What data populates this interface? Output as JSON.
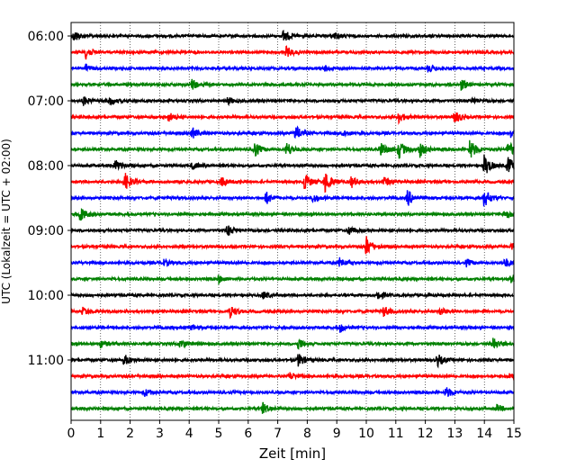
{
  "chart_data": {
    "type": "line",
    "title": "",
    "xlabel": "Zeit  [min]",
    "ylabel": "UTC (Lokalzeit = UTC + 02:00)",
    "xlim": [
      0,
      15
    ],
    "x_ticks": [
      0,
      1,
      2,
      3,
      4,
      5,
      6,
      7,
      8,
      9,
      10,
      11,
      12,
      13,
      14,
      15
    ],
    "x_tick_labels": [
      "0",
      "1",
      "2",
      "3",
      "4",
      "5",
      "6",
      "7",
      "8",
      "9",
      "10",
      "11",
      "12",
      "13",
      "14",
      "15"
    ],
    "y_tick_labels": [
      "06:00",
      "07:00",
      "08:00",
      "09:00",
      "10:00",
      "11:00"
    ],
    "trace_interval_minutes": 15,
    "grid": "vertical dotted",
    "colors": [
      "#000000",
      "#ff0000",
      "#0000ff",
      "#008000"
    ],
    "series": [
      {
        "start": "06:00",
        "color": "#000000",
        "events": [
          [
            0.1,
            6
          ],
          [
            7.2,
            7
          ],
          [
            8.9,
            4
          ]
        ]
      },
      {
        "start": "06:15",
        "color": "#ff0000",
        "events": [
          [
            0.5,
            7
          ],
          [
            7.3,
            6
          ]
        ]
      },
      {
        "start": "06:30",
        "color": "#0000ff",
        "events": [
          [
            0.5,
            4
          ],
          [
            8.6,
            3
          ],
          [
            12.1,
            4
          ]
        ]
      },
      {
        "start": "06:45",
        "color": "#008000",
        "events": [
          [
            4.1,
            6
          ],
          [
            13.2,
            6
          ]
        ]
      },
      {
        "start": "07:00",
        "color": "#000000",
        "events": [
          [
            0.4,
            5
          ],
          [
            1.3,
            4
          ],
          [
            5.3,
            4
          ],
          [
            13.6,
            3
          ]
        ]
      },
      {
        "start": "07:15",
        "color": "#ff0000",
        "events": [
          [
            3.3,
            5
          ],
          [
            11.1,
            6
          ],
          [
            13.0,
            7
          ]
        ]
      },
      {
        "start": "07:30",
        "color": "#0000ff",
        "events": [
          [
            4.1,
            6
          ],
          [
            7.6,
            8
          ],
          [
            9.2,
            4
          ],
          [
            14.9,
            6
          ]
        ]
      },
      {
        "start": "07:45",
        "color": "#008000",
        "events": [
          [
            6.2,
            9
          ],
          [
            7.3,
            8
          ],
          [
            10.5,
            8
          ],
          [
            11.1,
            10
          ],
          [
            11.8,
            9
          ],
          [
            13.5,
            12
          ],
          [
            14.8,
            9
          ]
        ]
      },
      {
        "start": "08:00",
        "color": "#000000",
        "events": [
          [
            1.5,
            6
          ],
          [
            4.1,
            4
          ],
          [
            14.0,
            12
          ],
          [
            14.8,
            10
          ]
        ]
      },
      {
        "start": "08:15",
        "color": "#ff0000",
        "events": [
          [
            1.8,
            11
          ],
          [
            5.1,
            5
          ],
          [
            7.9,
            10
          ],
          [
            8.6,
            12
          ],
          [
            9.5,
            6
          ],
          [
            10.6,
            5
          ]
        ]
      },
      {
        "start": "08:30",
        "color": "#0000ff",
        "events": [
          [
            6.6,
            7
          ],
          [
            8.2,
            5
          ],
          [
            11.4,
            9
          ],
          [
            14.0,
            10
          ]
        ]
      },
      {
        "start": "08:45",
        "color": "#008000",
        "events": [
          [
            0.3,
            8
          ],
          [
            14.7,
            6
          ]
        ]
      },
      {
        "start": "09:00",
        "color": "#000000",
        "events": [
          [
            5.3,
            6
          ],
          [
            9.4,
            5
          ]
        ]
      },
      {
        "start": "09:15",
        "color": "#ff0000",
        "events": [
          [
            10.0,
            11
          ],
          [
            14.9,
            4
          ]
        ]
      },
      {
        "start": "09:30",
        "color": "#0000ff",
        "events": [
          [
            3.1,
            4
          ],
          [
            9.1,
            5
          ],
          [
            13.4,
            4
          ],
          [
            14.7,
            5
          ]
        ]
      },
      {
        "start": "09:45",
        "color": "#008000",
        "events": [
          [
            5.0,
            4
          ],
          [
            14.9,
            5
          ]
        ]
      },
      {
        "start": "10:00",
        "color": "#000000",
        "events": [
          [
            6.5,
            4
          ],
          [
            10.4,
            5
          ]
        ]
      },
      {
        "start": "10:15",
        "color": "#ff0000",
        "events": [
          [
            0.4,
            4
          ],
          [
            5.4,
            6
          ],
          [
            10.6,
            6
          ],
          [
            12.5,
            4
          ]
        ]
      },
      {
        "start": "10:30",
        "color": "#0000ff",
        "events": [
          [
            4.1,
            3
          ],
          [
            9.1,
            5
          ]
        ]
      },
      {
        "start": "10:45",
        "color": "#008000",
        "events": [
          [
            1.0,
            4
          ],
          [
            3.7,
            5
          ],
          [
            7.7,
            6
          ],
          [
            14.3,
            6
          ]
        ]
      },
      {
        "start": "11:00",
        "color": "#000000",
        "events": [
          [
            1.8,
            6
          ],
          [
            7.7,
            7
          ],
          [
            12.4,
            7
          ]
        ]
      },
      {
        "start": "11:15",
        "color": "#ff0000",
        "events": [
          [
            7.4,
            4
          ],
          [
            14.8,
            3
          ]
        ]
      },
      {
        "start": "11:30",
        "color": "#0000ff",
        "events": [
          [
            2.5,
            4
          ],
          [
            12.7,
            6
          ]
        ]
      },
      {
        "start": "11:45",
        "color": "#008000",
        "events": [
          [
            6.5,
            6
          ],
          [
            14.4,
            4
          ]
        ]
      }
    ]
  }
}
